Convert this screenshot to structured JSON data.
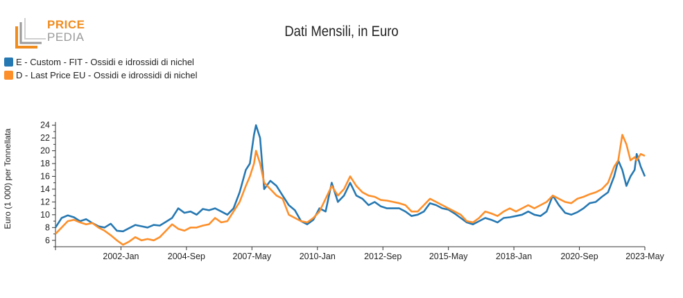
{
  "logo": {
    "line1": "PRICE",
    "line2": "PEDIA"
  },
  "colors": {
    "series_e": "#2678b2",
    "series_d": "#fd8f2a",
    "logo_orange": "#f08c1e",
    "logo_gray": "#9a9a9a"
  },
  "chart_data": {
    "type": "line",
    "title": "Dati Mensili, in Euro",
    "ylabel": "Euro (1 000) per Tonnellata",
    "xlabel": "",
    "ylim": [
      5,
      24.5
    ],
    "yticks": [
      6,
      8,
      10,
      12,
      14,
      16,
      18,
      20,
      22,
      24
    ],
    "xlim": [
      "1999-05",
      "2023-05"
    ],
    "xticks": [
      "2002-Jan",
      "2004-Sep",
      "2007-May",
      "2010-Jan",
      "2012-Sep",
      "2015-May",
      "2018-Jan",
      "2020-Sep",
      "2023-May"
    ],
    "legend_position": "top-left",
    "series": [
      {
        "name": "E - Custom - FIT - Ossidi e idrossidi di nichel",
        "color": "#2678b2",
        "points": [
          [
            "1999-05",
            8.0
          ],
          [
            "1999-08",
            9.5
          ],
          [
            "1999-11",
            9.9
          ],
          [
            "2000-02",
            9.6
          ],
          [
            "2000-05",
            9.0
          ],
          [
            "2000-08",
            9.3
          ],
          [
            "2000-11",
            8.7
          ],
          [
            "2001-02",
            8.2
          ],
          [
            "2001-05",
            8.0
          ],
          [
            "2001-08",
            8.6
          ],
          [
            "2001-11",
            7.5
          ],
          [
            "2002-02",
            7.4
          ],
          [
            "2002-05",
            7.9
          ],
          [
            "2002-08",
            8.4
          ],
          [
            "2002-11",
            8.2
          ],
          [
            "2003-02",
            8.0
          ],
          [
            "2003-05",
            8.4
          ],
          [
            "2003-08",
            8.3
          ],
          [
            "2003-11",
            8.9
          ],
          [
            "2004-02",
            9.5
          ],
          [
            "2004-05",
            11.0
          ],
          [
            "2004-08",
            10.3
          ],
          [
            "2004-11",
            10.5
          ],
          [
            "2005-02",
            10.0
          ],
          [
            "2005-05",
            10.9
          ],
          [
            "2005-08",
            10.7
          ],
          [
            "2005-11",
            11.0
          ],
          [
            "2006-02",
            10.5
          ],
          [
            "2006-05",
            10.0
          ],
          [
            "2006-08",
            11.0
          ],
          [
            "2006-11",
            13.5
          ],
          [
            "2007-02",
            17.0
          ],
          [
            "2007-04",
            18.0
          ],
          [
            "2007-06",
            22.5
          ],
          [
            "2007-07",
            24.0
          ],
          [
            "2007-09",
            22.0
          ],
          [
            "2007-11",
            14.0
          ],
          [
            "2008-02",
            15.3
          ],
          [
            "2008-05",
            14.5
          ],
          [
            "2008-08",
            13.0
          ],
          [
            "2008-11",
            11.5
          ],
          [
            "2009-02",
            10.7
          ],
          [
            "2009-05",
            9.0
          ],
          [
            "2009-08",
            8.5
          ],
          [
            "2009-11",
            9.2
          ],
          [
            "2010-02",
            11.0
          ],
          [
            "2010-05",
            10.5
          ],
          [
            "2010-08",
            15.0
          ],
          [
            "2010-11",
            12.0
          ],
          [
            "2011-02",
            13.0
          ],
          [
            "2011-05",
            15.0
          ],
          [
            "2011-08",
            13.0
          ],
          [
            "2011-11",
            12.5
          ],
          [
            "2012-02",
            11.5
          ],
          [
            "2012-05",
            12.0
          ],
          [
            "2012-08",
            11.3
          ],
          [
            "2012-11",
            11.0
          ],
          [
            "2013-02",
            11.0
          ],
          [
            "2013-05",
            11.0
          ],
          [
            "2013-08",
            10.5
          ],
          [
            "2013-11",
            9.8
          ],
          [
            "2014-02",
            10.0
          ],
          [
            "2014-05",
            10.5
          ],
          [
            "2014-08",
            11.8
          ],
          [
            "2014-11",
            11.5
          ],
          [
            "2015-02",
            11.0
          ],
          [
            "2015-05",
            10.8
          ],
          [
            "2015-08",
            10.2
          ],
          [
            "2015-11",
            9.5
          ],
          [
            "2016-02",
            8.8
          ],
          [
            "2016-05",
            8.5
          ],
          [
            "2016-08",
            9.0
          ],
          [
            "2016-11",
            9.5
          ],
          [
            "2017-02",
            9.2
          ],
          [
            "2017-05",
            8.8
          ],
          [
            "2017-08",
            9.5
          ],
          [
            "2017-11",
            9.6
          ],
          [
            "2018-02",
            9.8
          ],
          [
            "2018-05",
            10.0
          ],
          [
            "2018-08",
            10.5
          ],
          [
            "2018-11",
            10.0
          ],
          [
            "2019-02",
            9.8
          ],
          [
            "2019-05",
            10.5
          ],
          [
            "2019-08",
            13.0
          ],
          [
            "2019-11",
            11.5
          ],
          [
            "2020-02",
            10.3
          ],
          [
            "2020-05",
            10.0
          ],
          [
            "2020-08",
            10.4
          ],
          [
            "2020-11",
            11.0
          ],
          [
            "2021-02",
            11.8
          ],
          [
            "2021-05",
            12.0
          ],
          [
            "2021-08",
            12.8
          ],
          [
            "2021-11",
            13.5
          ],
          [
            "2022-02",
            16.0
          ],
          [
            "2022-04",
            18.5
          ],
          [
            "2022-06",
            17.0
          ],
          [
            "2022-08",
            14.5
          ],
          [
            "2022-10",
            16.0
          ],
          [
            "2022-12",
            17.0
          ],
          [
            "2023-01",
            19.5
          ],
          [
            "2023-03",
            17.5
          ],
          [
            "2023-05",
            16.0
          ]
        ]
      },
      {
        "name": "D - Last Price EU - Ossidi e idrossidi di nichel",
        "color": "#fd8f2a",
        "points": [
          [
            "1999-05",
            7.0
          ],
          [
            "1999-08",
            8.0
          ],
          [
            "1999-11",
            9.0
          ],
          [
            "2000-02",
            9.2
          ],
          [
            "2000-05",
            8.8
          ],
          [
            "2000-08",
            8.5
          ],
          [
            "2000-11",
            8.7
          ],
          [
            "2001-02",
            8.0
          ],
          [
            "2001-05",
            7.5
          ],
          [
            "2001-08",
            6.8
          ],
          [
            "2001-11",
            6.0
          ],
          [
            "2002-02",
            5.3
          ],
          [
            "2002-05",
            5.8
          ],
          [
            "2002-08",
            6.5
          ],
          [
            "2002-11",
            6.0
          ],
          [
            "2003-02",
            6.2
          ],
          [
            "2003-05",
            6.0
          ],
          [
            "2003-08",
            6.5
          ],
          [
            "2003-11",
            7.5
          ],
          [
            "2004-02",
            8.5
          ],
          [
            "2004-05",
            7.8
          ],
          [
            "2004-08",
            7.5
          ],
          [
            "2004-11",
            8.0
          ],
          [
            "2005-02",
            8.0
          ],
          [
            "2005-05",
            8.3
          ],
          [
            "2005-08",
            8.5
          ],
          [
            "2005-11",
            9.5
          ],
          [
            "2006-02",
            8.8
          ],
          [
            "2006-05",
            9.0
          ],
          [
            "2006-08",
            10.5
          ],
          [
            "2006-11",
            12.0
          ],
          [
            "2007-02",
            14.5
          ],
          [
            "2007-04",
            16.0
          ],
          [
            "2007-06",
            18.0
          ],
          [
            "2007-07",
            20.0
          ],
          [
            "2007-09",
            18.0
          ],
          [
            "2007-11",
            15.0
          ],
          [
            "2008-02",
            14.0
          ],
          [
            "2008-05",
            13.0
          ],
          [
            "2008-08",
            12.5
          ],
          [
            "2008-11",
            10.0
          ],
          [
            "2009-02",
            9.5
          ],
          [
            "2009-05",
            9.0
          ],
          [
            "2009-08",
            8.8
          ],
          [
            "2009-11",
            9.5
          ],
          [
            "2010-02",
            10.5
          ],
          [
            "2010-05",
            12.5
          ],
          [
            "2010-08",
            14.5
          ],
          [
            "2010-11",
            13.0
          ],
          [
            "2011-02",
            14.0
          ],
          [
            "2011-05",
            16.0
          ],
          [
            "2011-08",
            14.5
          ],
          [
            "2011-11",
            13.5
          ],
          [
            "2012-02",
            13.0
          ],
          [
            "2012-05",
            12.8
          ],
          [
            "2012-08",
            12.3
          ],
          [
            "2012-11",
            12.2
          ],
          [
            "2013-02",
            12.0
          ],
          [
            "2013-05",
            11.8
          ],
          [
            "2013-08",
            11.5
          ],
          [
            "2013-11",
            10.5
          ],
          [
            "2014-02",
            10.5
          ],
          [
            "2014-05",
            11.5
          ],
          [
            "2014-08",
            12.5
          ],
          [
            "2014-11",
            12.0
          ],
          [
            "2015-02",
            11.5
          ],
          [
            "2015-05",
            11.0
          ],
          [
            "2015-08",
            10.5
          ],
          [
            "2015-11",
            10.0
          ],
          [
            "2016-02",
            9.0
          ],
          [
            "2016-05",
            8.8
          ],
          [
            "2016-08",
            9.5
          ],
          [
            "2016-11",
            10.5
          ],
          [
            "2017-02",
            10.2
          ],
          [
            "2017-05",
            9.8
          ],
          [
            "2017-08",
            10.5
          ],
          [
            "2017-11",
            11.0
          ],
          [
            "2018-02",
            10.5
          ],
          [
            "2018-05",
            11.0
          ],
          [
            "2018-08",
            11.5
          ],
          [
            "2018-11",
            11.0
          ],
          [
            "2019-02",
            11.5
          ],
          [
            "2019-05",
            12.0
          ],
          [
            "2019-08",
            13.0
          ],
          [
            "2019-11",
            12.5
          ],
          [
            "2020-02",
            12.0
          ],
          [
            "2020-05",
            11.8
          ],
          [
            "2020-08",
            12.5
          ],
          [
            "2020-11",
            12.8
          ],
          [
            "2021-02",
            13.2
          ],
          [
            "2021-05",
            13.5
          ],
          [
            "2021-08",
            14.0
          ],
          [
            "2021-11",
            15.0
          ],
          [
            "2022-02",
            17.5
          ],
          [
            "2022-04",
            18.5
          ],
          [
            "2022-06",
            22.5
          ],
          [
            "2022-08",
            21.0
          ],
          [
            "2022-10",
            18.5
          ],
          [
            "2022-12",
            19.0
          ],
          [
            "2023-01",
            18.5
          ],
          [
            "2023-03",
            19.5
          ],
          [
            "2023-05",
            19.2
          ]
        ]
      }
    ]
  }
}
